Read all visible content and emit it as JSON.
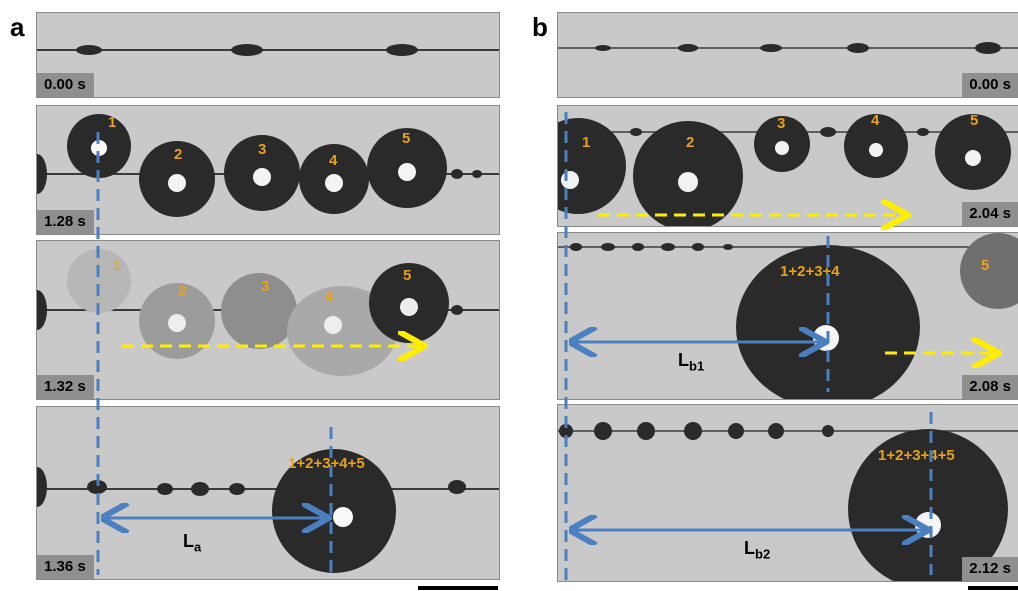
{
  "panels": {
    "a": {
      "letter": "a",
      "times": [
        "0.00 s",
        "1.28 s",
        "1.32 s",
        "1.36 s"
      ],
      "drop_labels_f2": [
        "1",
        "2",
        "3",
        "4",
        "5"
      ],
      "drop_labels_f3": [
        "1",
        "2",
        "3",
        "4",
        "5"
      ],
      "merged_label": "1+2+3+4+5",
      "distance_label": "L",
      "distance_sub": "a"
    },
    "b": {
      "letter": "b",
      "times": [
        "0.00 s",
        "2.04 s",
        "2.08 s",
        "2.12 s"
      ],
      "drop_labels_f2": [
        "1",
        "2",
        "3",
        "4",
        "5"
      ],
      "merged_label_f3": "1+2+3+4",
      "label_f3_extra": "5",
      "merged_label_f4": "1+2+3+4+5",
      "distance_label_1": "L",
      "distance_sub_1": "b1",
      "distance_label_2": "L",
      "distance_sub_2": "b2"
    }
  },
  "colors": {
    "frame_bg": "#c9c9c9",
    "fiber": "#3a3a3a",
    "drop": "#2a2a2a",
    "label": "#e8a21a",
    "blue": "#4a7fc0",
    "yellow": "#ffee00"
  }
}
